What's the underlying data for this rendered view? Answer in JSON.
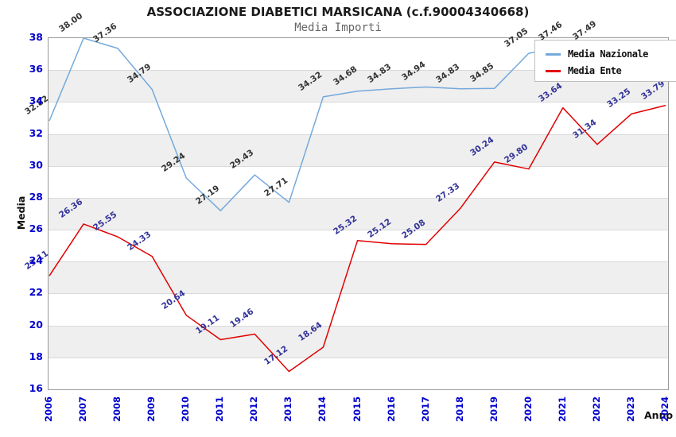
{
  "chart_data": {
    "type": "line",
    "title": "ASSOCIAZIONE DIABETICI MARSICANA (c.f.90004340668)",
    "subtitle": "Media Importi",
    "xlabel": "Anno",
    "ylabel": "Media",
    "ylim": [
      16,
      38
    ],
    "yticks": [
      16,
      18,
      20,
      22,
      24,
      26,
      28,
      30,
      32,
      34,
      36,
      38
    ],
    "categories": [
      "2006",
      "2007",
      "2008",
      "2009",
      "2010",
      "2011",
      "2012",
      "2013",
      "2014",
      "2015",
      "2016",
      "2017",
      "2018",
      "2019",
      "2020",
      "2021",
      "2022",
      "2023",
      "2024"
    ],
    "series": [
      {
        "name": "Media Nazionale",
        "color": "#74a9dc",
        "label_color": "#333333",
        "values": [
          32.82,
          38.0,
          37.36,
          34.79,
          29.24,
          27.19,
          29.43,
          27.71,
          34.32,
          34.68,
          34.83,
          34.94,
          34.83,
          34.85,
          37.05,
          37.46,
          37.49,
          null,
          null
        ],
        "labels": [
          "32.82",
          "38.00",
          "37.36",
          "34.79",
          "29.24",
          "27.19",
          "29.43",
          "27.71",
          "34.32",
          "34.68",
          "34.83",
          "34.94",
          "34.83",
          "34.85",
          "37.05",
          "37.46",
          "37.49",
          "",
          ""
        ]
      },
      {
        "name": "Media Ente",
        "color": "#e10000",
        "label_color": "#333399",
        "values": [
          23.11,
          26.36,
          25.55,
          24.33,
          20.64,
          19.11,
          19.46,
          17.12,
          18.64,
          25.32,
          25.12,
          25.08,
          27.33,
          30.24,
          29.8,
          33.64,
          31.34,
          33.25,
          33.79
        ],
        "labels": [
          "23.11",
          "26.36",
          "25.55",
          "24.33",
          "20.64",
          "19.11",
          "19.46",
          "17.12",
          "18.64",
          "25.32",
          "25.12",
          "25.08",
          "27.33",
          "30.24",
          "29.80",
          "33.64",
          "31.34",
          "33.25",
          "33.79"
        ]
      }
    ],
    "legend": {
      "position": "top-right",
      "items": [
        "Media Nazionale",
        "Media Ente"
      ]
    },
    "grid": true,
    "styles": {
      "band_color": "#efefef",
      "grid_color": "#d9d9d9",
      "axis_color": "#9a9a9a",
      "tick_color": "#0000cc",
      "background": "#ffffff"
    }
  }
}
